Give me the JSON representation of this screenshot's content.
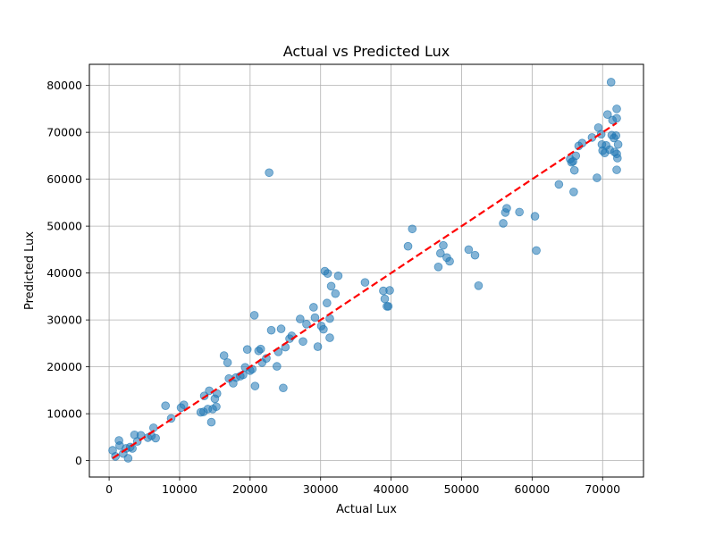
{
  "chart_data": {
    "type": "scatter",
    "title": "Actual vs Predicted Lux",
    "xlabel": "Actual Lux",
    "ylabel": "Predicted Lux",
    "xlim": [
      -2800,
      75800
    ],
    "ylim": [
      -3500,
      84500
    ],
    "xticks": [
      0,
      10000,
      20000,
      30000,
      40000,
      50000,
      60000,
      70000
    ],
    "yticks": [
      0,
      10000,
      20000,
      30000,
      40000,
      50000,
      60000,
      70000,
      80000
    ],
    "grid": true,
    "colors": {
      "points": "#1f77b4",
      "reference_line": "#ff0000"
    },
    "reference_line": {
      "x": [
        500,
        72000
      ],
      "y": [
        500,
        72000
      ]
    },
    "points": [
      [
        500,
        2200
      ],
      [
        900,
        900
      ],
      [
        1400,
        4300
      ],
      [
        1500,
        3200
      ],
      [
        2000,
        1500
      ],
      [
        2400,
        2600
      ],
      [
        2700,
        500
      ],
      [
        3000,
        2900
      ],
      [
        3300,
        2600
      ],
      [
        3600,
        5500
      ],
      [
        4000,
        4100
      ],
      [
        4500,
        5400
      ],
      [
        5500,
        4900
      ],
      [
        6000,
        5300
      ],
      [
        6300,
        7000
      ],
      [
        6600,
        4800
      ],
      [
        8000,
        11700
      ],
      [
        8800,
        9000
      ],
      [
        10200,
        11300
      ],
      [
        10600,
        11900
      ],
      [
        13000,
        10300
      ],
      [
        13400,
        10400
      ],
      [
        13500,
        13800
      ],
      [
        14000,
        11000
      ],
      [
        14200,
        14900
      ],
      [
        14500,
        8200
      ],
      [
        14700,
        11000
      ],
      [
        15000,
        13200
      ],
      [
        15200,
        11500
      ],
      [
        15300,
        14300
      ],
      [
        16300,
        22400
      ],
      [
        16800,
        20900
      ],
      [
        17000,
        17500
      ],
      [
        17600,
        16500
      ],
      [
        18000,
        17700
      ],
      [
        18600,
        18000
      ],
      [
        19000,
        18300
      ],
      [
        19300,
        19900
      ],
      [
        19600,
        23700
      ],
      [
        20000,
        19200
      ],
      [
        20300,
        19500
      ],
      [
        20600,
        31000
      ],
      [
        20700,
        15900
      ],
      [
        21200,
        23400
      ],
      [
        21500,
        23800
      ],
      [
        21700,
        20900
      ],
      [
        22300,
        21800
      ],
      [
        22700,
        61400
      ],
      [
        23000,
        27800
      ],
      [
        23800,
        20100
      ],
      [
        24000,
        23200
      ],
      [
        24400,
        28100
      ],
      [
        24700,
        15500
      ],
      [
        25000,
        24200
      ],
      [
        25600,
        26000
      ],
      [
        25900,
        26600
      ],
      [
        27100,
        30200
      ],
      [
        27500,
        25400
      ],
      [
        28000,
        29100
      ],
      [
        29000,
        32700
      ],
      [
        29200,
        30500
      ],
      [
        29600,
        24300
      ],
      [
        30100,
        28700
      ],
      [
        30400,
        28000
      ],
      [
        30600,
        40400
      ],
      [
        30900,
        33600
      ],
      [
        31000,
        39900
      ],
      [
        31300,
        30300
      ],
      [
        31300,
        26200
      ],
      [
        31500,
        37200
      ],
      [
        32100,
        35600
      ],
      [
        32500,
        39400
      ],
      [
        36300,
        38000
      ],
      [
        38900,
        36200
      ],
      [
        39100,
        34500
      ],
      [
        39400,
        32900
      ],
      [
        39600,
        32900
      ],
      [
        39800,
        36300
      ],
      [
        42400,
        45700
      ],
      [
        43000,
        49400
      ],
      [
        46700,
        41300
      ],
      [
        47000,
        44200
      ],
      [
        47400,
        45900
      ],
      [
        47900,
        43300
      ],
      [
        48300,
        42500
      ],
      [
        51000,
        45000
      ],
      [
        51900,
        43800
      ],
      [
        52400,
        37300
      ],
      [
        55900,
        50600
      ],
      [
        56200,
        52900
      ],
      [
        56400,
        53800
      ],
      [
        58200,
        53000
      ],
      [
        60400,
        52100
      ],
      [
        60600,
        44800
      ],
      [
        63800,
        58900
      ],
      [
        65400,
        64300
      ],
      [
        65600,
        63600
      ],
      [
        65800,
        63800
      ],
      [
        65900,
        57300
      ],
      [
        66000,
        61900
      ],
      [
        66200,
        65000
      ],
      [
        66600,
        67100
      ],
      [
        67100,
        67700
      ],
      [
        68500,
        68900
      ],
      [
        69200,
        60300
      ],
      [
        69400,
        71000
      ],
      [
        69800,
        69600
      ],
      [
        69900,
        67400
      ],
      [
        70000,
        66100
      ],
      [
        70300,
        65600
      ],
      [
        70500,
        67200
      ],
      [
        70700,
        73800
      ],
      [
        71000,
        66300
      ],
      [
        71200,
        80700
      ],
      [
        71300,
        69400
      ],
      [
        71400,
        72600
      ],
      [
        71600,
        68800
      ],
      [
        71700,
        65800
      ],
      [
        71900,
        69300
      ],
      [
        72000,
        75000
      ],
      [
        72000,
        73000
      ],
      [
        72000,
        65400
      ],
      [
        72100,
        64500
      ],
      [
        72000,
        62000
      ],
      [
        72200,
        67400
      ]
    ]
  }
}
